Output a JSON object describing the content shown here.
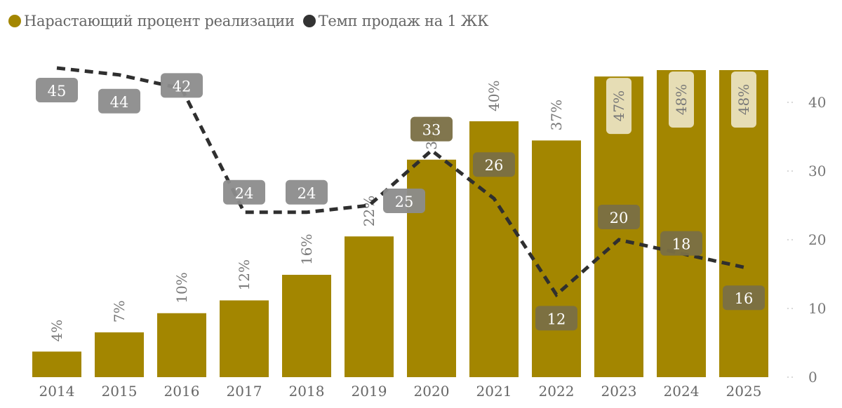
{
  "legend": [
    {
      "label": "Нарастающий процент реализации",
      "color": "#A38600"
    },
    {
      "label": "Темп продаж на 1 ЖК",
      "color": "#333333"
    }
  ],
  "colors": {
    "bar": "#A38600",
    "line": "#2F2F2F",
    "label_grey": "#8C8C8C",
    "label_olive": "#7A6F45",
    "label_light": "#E6DDB5"
  },
  "chart_data": {
    "type": "bar+line",
    "title": "",
    "categories": [
      "2014",
      "2015",
      "2016",
      "2017",
      "2018",
      "2019",
      "2020",
      "2021",
      "2022",
      "2023",
      "2024",
      "2025"
    ],
    "series": [
      {
        "name": "Нарастающий процент реализации",
        "type": "bar",
        "axis": "left (hidden)",
        "values": [
          4,
          7,
          10,
          12,
          16,
          22,
          34,
          40,
          37,
          47,
          48,
          48
        ],
        "labels": [
          "4%",
          "7%",
          "10%",
          "12%",
          "16%",
          "22%",
          "34%",
          "40%",
          "37%",
          "47%",
          "48%",
          "48%"
        ]
      },
      {
        "name": "Темп продаж на 1 ЖК",
        "type": "line",
        "style": "dashed",
        "axis": "right",
        "values": [
          45,
          44,
          42,
          24,
          24,
          25,
          33,
          26,
          12,
          20,
          18,
          16
        ]
      }
    ],
    "right_axis": {
      "ticks": [
        0,
        10,
        20,
        30,
        40
      ],
      "range": [
        0,
        55
      ]
    },
    "legend_position": "top-left",
    "grid": false
  }
}
